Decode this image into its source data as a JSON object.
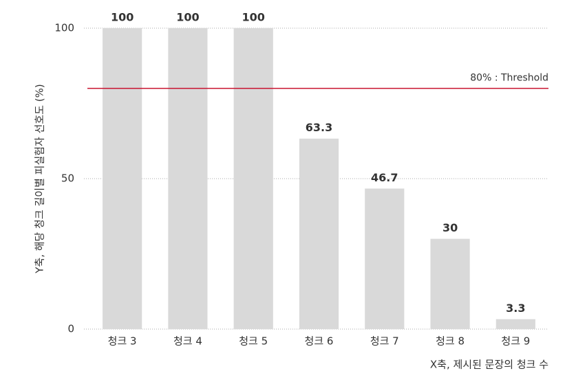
{
  "chart_data": {
    "type": "bar",
    "x_label": "X축, 제시된 문장의 청크 수",
    "y_label": "Y축, 해당 청크 길이별 피실험자 선호도 (%)",
    "categories": [
      "청크 3",
      "청크 4",
      "청크 5",
      "청크 6",
      "청크 7",
      "청크 8",
      "청크 9"
    ],
    "values": [
      100,
      100,
      100,
      63.3,
      46.7,
      30,
      3.3
    ],
    "color": "#d9d9d9",
    "ylim": [
      0,
      100
    ],
    "yticks": [
      0,
      50,
      100
    ],
    "grid": true,
    "threshold": {
      "value": 80,
      "label": "80% : Threshold",
      "color": "#c8102e"
    }
  }
}
